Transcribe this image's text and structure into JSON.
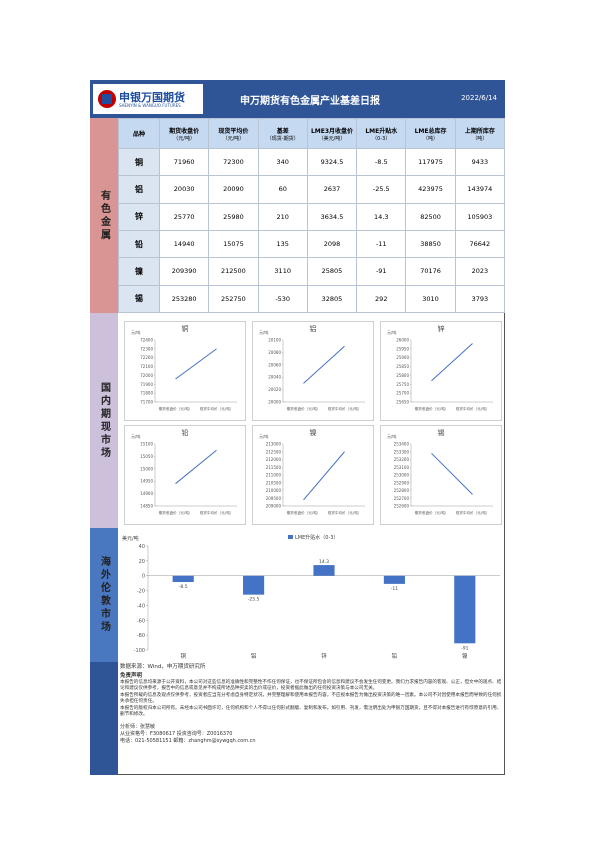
{
  "header": {
    "logo_name": "申银万国期货",
    "logo_sub": "SHENYIN & WANGUO FUTURES",
    "title": "申万期货有色金属产业基差日报",
    "date": "2022/6/14"
  },
  "table": {
    "label": "有色金属",
    "columns": [
      {
        "name": "品种"
      },
      {
        "name": "期货收盘价",
        "unit": "（元/吨）"
      },
      {
        "name": "现货平均价",
        "unit": "（元/吨）"
      },
      {
        "name": "基差",
        "unit": "（现货-期货）"
      },
      {
        "name": "LME3月收盘价",
        "unit": "（美元/吨）"
      },
      {
        "name": "LME升贴水",
        "unit": "（0-3）"
      },
      {
        "name": "LME总库存",
        "unit": "（吨）"
      },
      {
        "name": "上期所库存",
        "unit": "（吨）"
      }
    ],
    "rows": [
      [
        "铜",
        71960,
        72300,
        340,
        9324.5,
        -8.5,
        117975,
        9433
      ],
      [
        "铝",
        20030,
        20090,
        60,
        2637,
        -25.5,
        423975,
        143974
      ],
      [
        "锌",
        25770,
        25980,
        210,
        3634.5,
        14.3,
        82500,
        105903
      ],
      [
        "铅",
        14940,
        15075,
        135,
        2098,
        -11,
        38850,
        76642
      ],
      [
        "镍",
        209390,
        212500,
        3110,
        25805,
        -91,
        70176,
        2023
      ],
      [
        "锡",
        253280,
        252750,
        -530,
        32805,
        292,
        3010,
        3793
      ]
    ]
  },
  "domestic": {
    "label": "国内期现市场",
    "charts": [
      {
        "type": "line",
        "title": "铜",
        "y_label": "元/吨",
        "categories": [
          "期货收盘价（元/吨）",
          "现货平均价（元/吨）"
        ],
        "values": [
          71960,
          72300
        ],
        "color": "#4472c4",
        "ylim": [
          71700,
          72400
        ],
        "yticks": [
          71700,
          71800,
          71900,
          72000,
          72100,
          72200,
          72300,
          72400
        ]
      },
      {
        "type": "line",
        "title": "铝",
        "y_label": "元/吨",
        "categories": [
          "期货收盘价（元/吨）",
          "现货平均价（元/吨）"
        ],
        "values": [
          20030,
          20090
        ],
        "color": "#4472c4",
        "ylim": [
          20000,
          20100
        ],
        "yticks": [
          20000,
          20020,
          20040,
          20060,
          20080,
          20100
        ]
      },
      {
        "type": "line",
        "title": "锌",
        "y_label": "元/吨",
        "categories": [
          "期货收盘价（元/吨）",
          "现货平均价（元/吨）"
        ],
        "values": [
          25770,
          25980
        ],
        "color": "#4472c4",
        "ylim": [
          25650,
          26000
        ],
        "yticks": [
          25650,
          25700,
          25750,
          25800,
          25850,
          25900,
          25950,
          26000
        ]
      },
      {
        "type": "line",
        "title": "铅",
        "y_label": "元/吨",
        "categories": [
          "期货收盘价（元/吨）",
          "现货平均价（元/吨）"
        ],
        "values": [
          14940,
          15075
        ],
        "color": "#4472c4",
        "ylim": [
          14850,
          15100
        ],
        "yticks": [
          14850,
          14900,
          14950,
          15000,
          15050,
          15100
        ]
      },
      {
        "type": "line",
        "title": "镍",
        "y_label": "元/吨",
        "categories": [
          "期货收盘价（元/吨）",
          "现货平均价（元/吨）"
        ],
        "values": [
          209390,
          212500
        ],
        "color": "#4472c4",
        "ylim": [
          209000,
          213000
        ],
        "yticks": [
          209000,
          209500,
          210000,
          210500,
          211000,
          211500,
          212000,
          212500,
          213000
        ]
      },
      {
        "type": "line",
        "title": "锡",
        "y_label": "元/吨",
        "categories": [
          "期货收盘价（元/吨）",
          "现货平均价（元/吨）"
        ],
        "values": [
          253280,
          252750
        ],
        "color": "#4472c4",
        "ylim": [
          252600,
          253400
        ],
        "yticks": [
          252600,
          252700,
          252800,
          252900,
          253000,
          253100,
          253200,
          253300,
          253400
        ]
      }
    ]
  },
  "overseas": {
    "label": "海外伦敦市场",
    "chart_data": {
      "type": "bar",
      "y_label": "美元/吨",
      "categories": [
        "铜",
        "铝",
        "锌",
        "铅",
        "镍"
      ],
      "series": [
        {
          "name": "LME升贴水（0-3）",
          "color": "#4472c4",
          "values": [
            -8.5,
            -25.5,
            14.3,
            -11,
            -91
          ]
        }
      ],
      "ylim": [
        -100,
        40
      ],
      "yticks": [
        -100,
        -80,
        -60,
        -40,
        -20,
        0,
        20,
        40
      ],
      "legend": "top"
    }
  },
  "footer": {
    "source": "数据来源：Wind，申万期货研究所",
    "disclaimer_title": "免责声明",
    "paragraphs": [
      "本报告的信息均来源于公开资料，本公司对这些信息的准确性和完整性不作任何保证，也不保证所包含的信息和建议不会发生任何变更。我们力求报告内容的客观、公正，但文中的观点、结论和建议仅供参考，报告中的信息或意见并不构成所述品种买卖的出价或征价，投资者据此做出的任何投资决策与本公司无关。",
      "本报告所载的信息及观点仅供参考，投资者应当充分考虑自身特定状况，并完整理解和使用本报告内容，不应视本报告为做出投资决策的唯一因素。本公司不对因使用本报告而导致的任何损失承担任何责任。",
      "本报告的版权归本公司所有。未经本公司书面许可，任何机构和个人不得以任何形式翻版、复制和发布。如引用、刊发，需注明出处为申银万国期货，且不得对本报告进行有悖原意的引用、删节和修改。"
    ],
    "analyst": "分析师：张慧敏",
    "license": "从业资格号：F3080617  投资咨询号：Z0016370",
    "contact": "电话：021-50581151  邮箱：zhanghm@sywgqh.com.cn"
  }
}
